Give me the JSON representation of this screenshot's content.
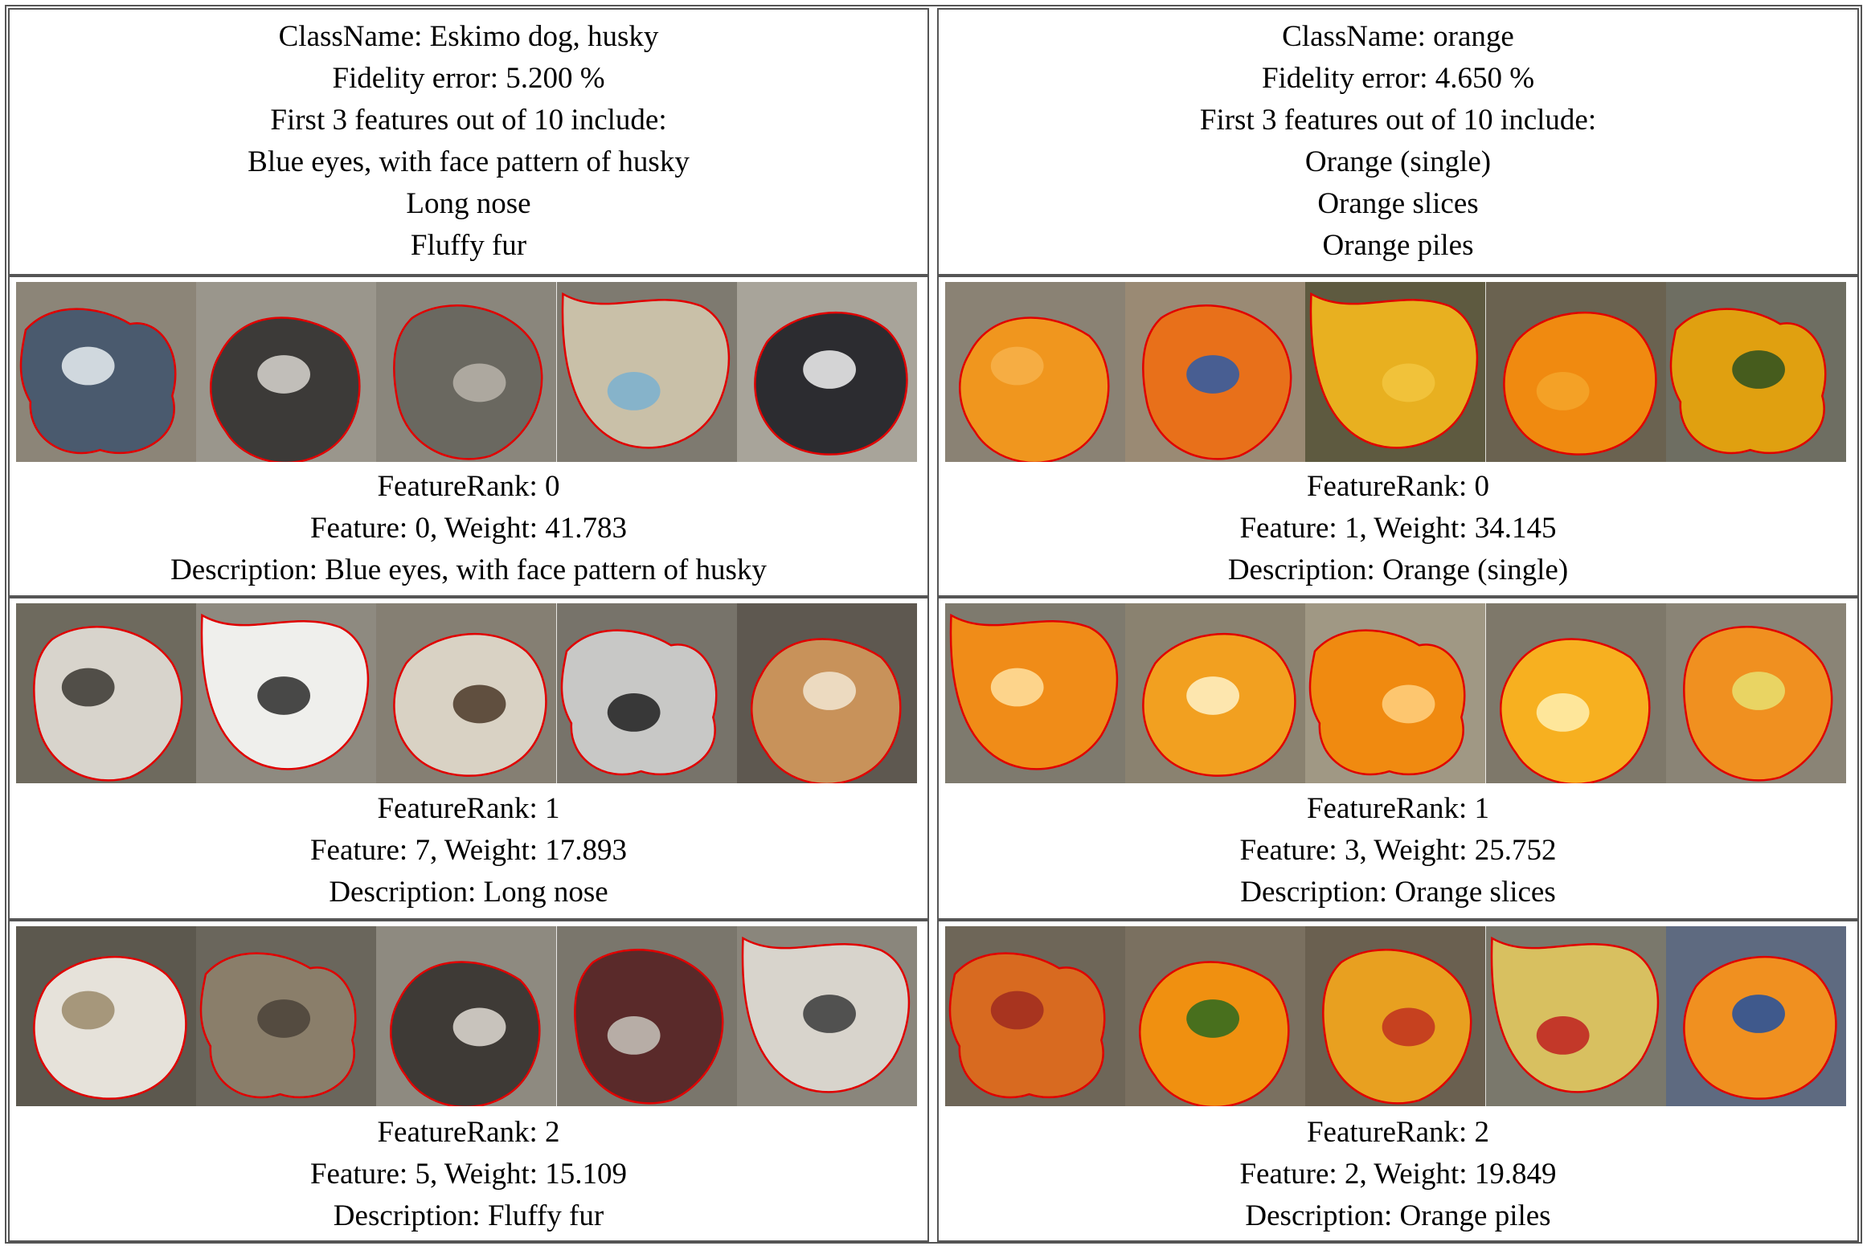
{
  "columns": [
    {
      "header": {
        "class_name": "ClassName: Eskimo dog, husky",
        "fidelity": "Fidelity error: 5.200 %",
        "intro": "First 3 features out of 10 include:",
        "features": [
          "Blue eyes, with face pattern of husky",
          "Long nose",
          "Fluffy fur"
        ]
      },
      "rows": [
        {
          "rank": "FeatureRank: 0",
          "feature": "Feature: 0, Weight: 41.783",
          "description": "Description: Blue eyes, with face pattern of husky",
          "thumbs": [
            {
              "bg": "#8c8578",
              "fg": "#4a5a6e",
              "acc": "#e8eef2"
            },
            {
              "bg": "#9a968c",
              "fg": "#3c3a38",
              "acc": "#d8d6d0"
            },
            {
              "bg": "#8a867c",
              "fg": "#6a6860",
              "acc": "#b8b4aa"
            },
            {
              "bg": "#7e7a70",
              "fg": "#c9c0a8",
              "acc": "#7ab0d0"
            },
            {
              "bg": "#a8a49a",
              "fg": "#2c2c30",
              "acc": "#f2f2f2"
            }
          ]
        },
        {
          "rank": "FeatureRank: 1",
          "feature": "Feature: 7, Weight: 17.893",
          "description": "Description: Long nose",
          "thumbs": [
            {
              "bg": "#6e6a5e",
              "fg": "#d8d4cc",
              "acc": "#3a3630"
            },
            {
              "bg": "#8e8a80",
              "fg": "#efefec",
              "acc": "#2a2a2a"
            },
            {
              "bg": "#857f73",
              "fg": "#d9d2c4",
              "acc": "#4a3828"
            },
            {
              "bg": "#77736a",
              "fg": "#c8c8c6",
              "acc": "#1e1e1e"
            },
            {
              "bg": "#5e5850",
              "fg": "#c8925a",
              "acc": "#f2e6d2"
            }
          ]
        },
        {
          "rank": "FeatureRank: 2",
          "feature": "Feature: 5, Weight: 15.109",
          "description": "Description: Fluffy fur",
          "thumbs": [
            {
              "bg": "#5c584e",
              "fg": "#e6e2da",
              "acc": "#9a8a6a"
            },
            {
              "bg": "#6a665c",
              "fg": "#8a7e6a",
              "acc": "#4a4238"
            },
            {
              "bg": "#8e8a80",
              "fg": "#3e3a36",
              "acc": "#e0dcd4"
            },
            {
              "bg": "#7a766c",
              "fg": "#5a2a2a",
              "acc": "#c8c4bc"
            },
            {
              "bg": "#8a867c",
              "fg": "#d8d4cc",
              "acc": "#3a3a3a"
            }
          ]
        }
      ]
    },
    {
      "header": {
        "class_name": "ClassName: orange",
        "fidelity": "Fidelity error: 4.650 %",
        "intro": "First 3 features out of 10 include:",
        "features": [
          "Orange (single)",
          "Orange slices",
          "Orange piles"
        ]
      },
      "rows": [
        {
          "rank": "FeatureRank: 0",
          "feature": "Feature: 1, Weight: 34.145",
          "description": "Description: Orange (single)",
          "thumbs": [
            {
              "bg": "#8a8274",
              "fg": "#f0961e",
              "acc": "#f7b24a"
            },
            {
              "bg": "#9a8a74",
              "fg": "#e8701a",
              "acc": "#2b5aa8"
            },
            {
              "bg": "#5e5a40",
              "fg": "#e8b020",
              "acc": "#f2c640"
            },
            {
              "bg": "#6a6250",
              "fg": "#f08a10",
              "acc": "#f5a52a"
            },
            {
              "bg": "#6e6e62",
              "fg": "#e0a010",
              "acc": "#2a5020"
            }
          ]
        },
        {
          "rank": "FeatureRank: 1",
          "feature": "Feature: 3, Weight: 25.752",
          "description": "Description: Orange slices",
          "thumbs": [
            {
              "bg": "#7e7a6e",
              "fg": "#f08c18",
              "acc": "#ffe0a0"
            },
            {
              "bg": "#8a8270",
              "fg": "#f2a020",
              "acc": "#fff2c8"
            },
            {
              "bg": "#a09884",
              "fg": "#f08a10",
              "acc": "#ffd080"
            },
            {
              "bg": "#7e786a",
              "fg": "#f7b020",
              "acc": "#fff0b0"
            },
            {
              "bg": "#8a8476",
              "fg": "#f09020",
              "acc": "#e8e070"
            }
          ]
        },
        {
          "rank": "FeatureRank: 2",
          "feature": "Feature: 2, Weight: 19.849",
          "description": "Description: Orange piles",
          "thumbs": [
            {
              "bg": "#6e6658",
              "fg": "#d86a20",
              "acc": "#a02a20"
            },
            {
              "bg": "#7a7060",
              "fg": "#f09010",
              "acc": "#2a6a20"
            },
            {
              "bg": "#6a6050",
              "fg": "#e8a020",
              "acc": "#c03020"
            },
            {
              "bg": "#7a786c",
              "fg": "#d8c060",
              "acc": "#c02020"
            },
            {
              "bg": "#5e6a80",
              "fg": "#f09020",
              "acc": "#2050a0"
            }
          ]
        }
      ]
    }
  ],
  "palette": {
    "outline": "#e00000",
    "border": "#555555"
  }
}
